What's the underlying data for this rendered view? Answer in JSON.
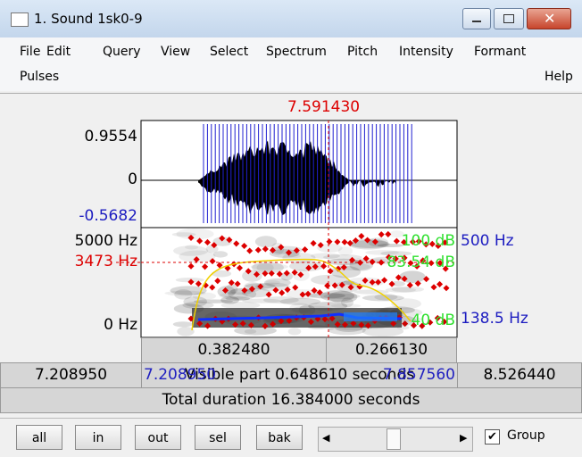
{
  "window": {
    "title": "1. Sound 1sk0-9"
  },
  "menu": {
    "row1": [
      "File",
      "Edit",
      "Query",
      "View",
      "Select",
      "Spectrum",
      "Pitch",
      "Intensity",
      "Formant"
    ],
    "row2_left": "Pulses",
    "row2_right": "Help"
  },
  "cursor": {
    "time": "7.591430"
  },
  "waveform": {
    "max": "0.9554",
    "zero": "0",
    "min": "-0.5682"
  },
  "spectrogram": {
    "top_freq": "5000 Hz",
    "cursor_freq": "3473 Hz",
    "bottom_freq": "0 Hz",
    "intensity_top": "100 dB",
    "intensity_cursor": "83.54 dB",
    "intensity_bottom": "40 dB",
    "pitch_top": "500 Hz",
    "pitch_value": "138.5 Hz"
  },
  "time_bar": {
    "left_of_cursor": "0.382480",
    "right_of_cursor": "0.266130",
    "window_start": "7.208950",
    "visible_start": "7.208950",
    "visible_part": "Visible part 0.648610 seconds",
    "visible_end": "7.857560",
    "window_end": "8.526440",
    "total": "Total duration 16.384000 seconds"
  },
  "buttons": [
    "all",
    "in",
    "out",
    "sel",
    "bak"
  ],
  "group": {
    "label": "Group",
    "checked": true
  }
}
